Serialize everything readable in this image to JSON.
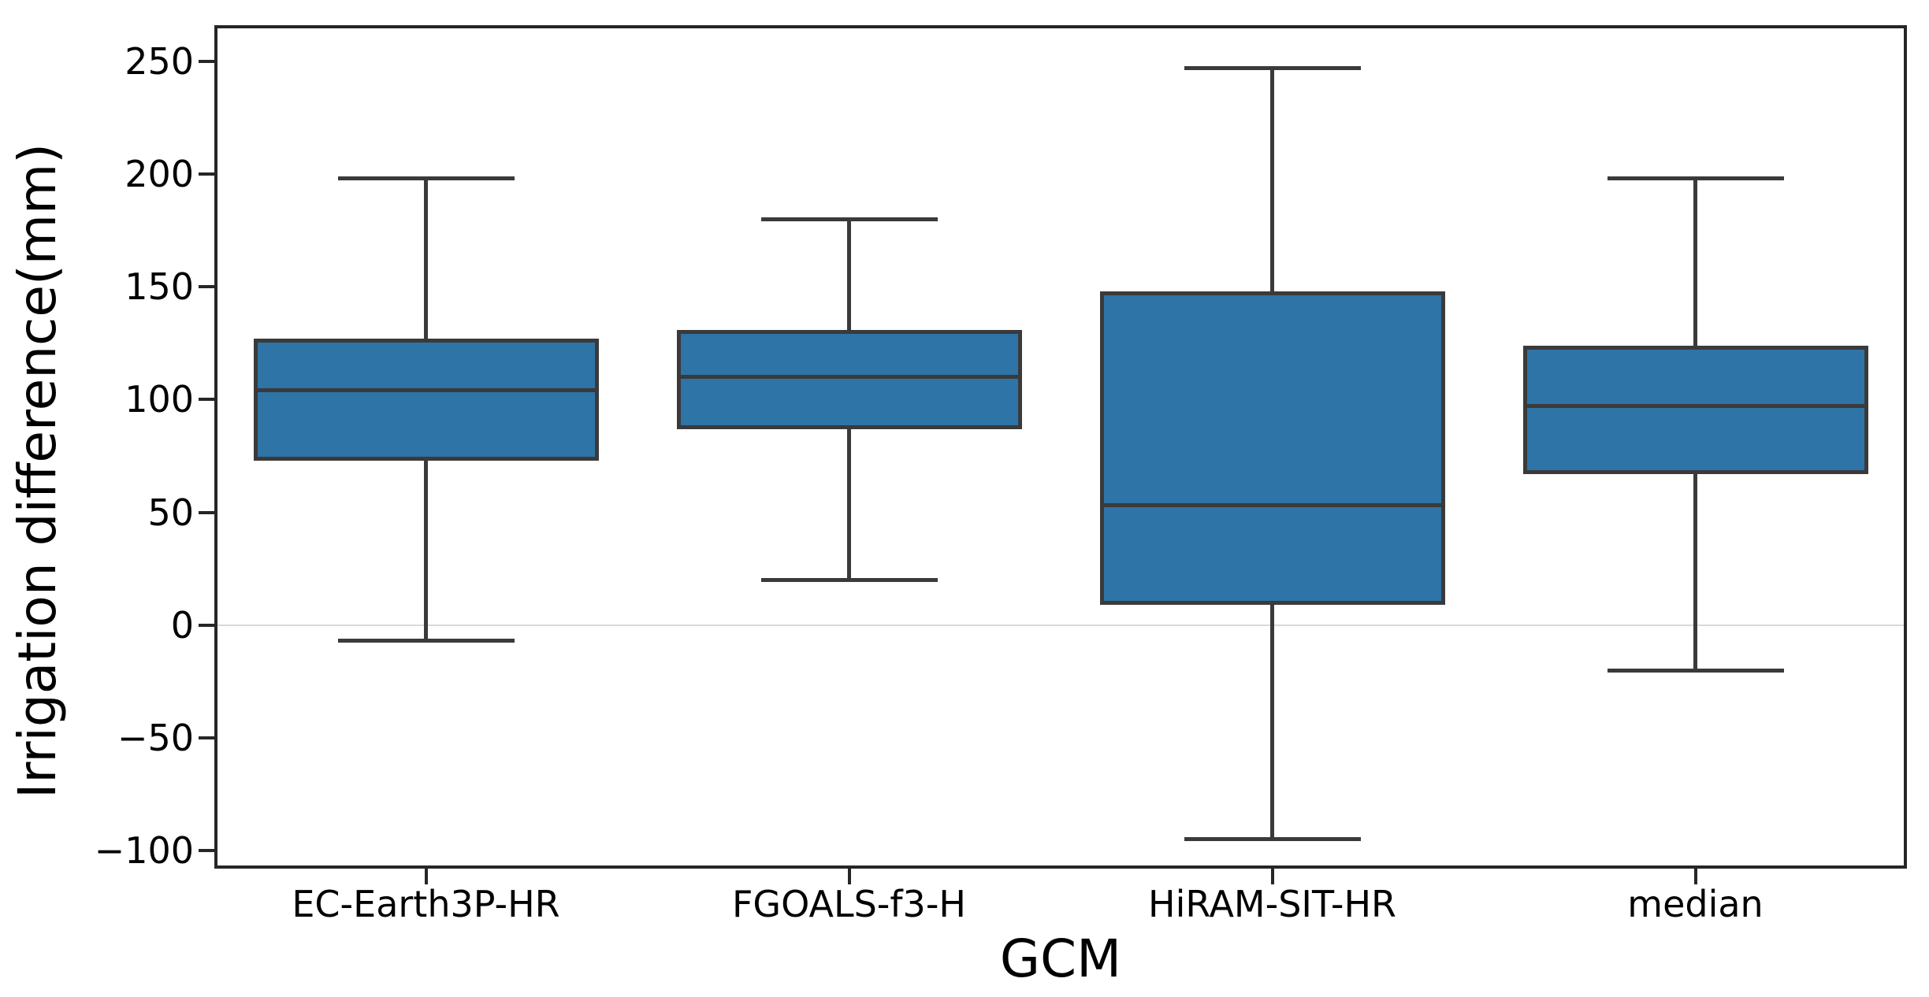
{
  "figure": {
    "background": "#ffffff"
  },
  "chart_data": {
    "type": "box",
    "title": "",
    "xlabel": "GCM",
    "ylabel": "Irrigation difference(mm)",
    "categories": [
      "EC-Earth3P-HR",
      "FGOALS-f3-H",
      "HiRAM-SIT-HR",
      "median"
    ],
    "ylim": [
      -108,
      266
    ],
    "yticks": [
      {
        "value": 250,
        "label": "250"
      },
      {
        "value": 200,
        "label": "200"
      },
      {
        "value": 150,
        "label": "150"
      },
      {
        "value": 100,
        "label": "100"
      },
      {
        "value": 50,
        "label": "50"
      },
      {
        "value": 0,
        "label": "0"
      },
      {
        "value": -50,
        "label": "−50"
      },
      {
        "value": -100,
        "label": "−100"
      }
    ],
    "grid": "horizontal-zero-reference-line-only",
    "legend_position": "none",
    "zero_line": {
      "value": 0
    },
    "boxes": [
      {
        "category": "EC-Earth3P-HR",
        "whisker_low": -7,
        "q1": 73,
        "median": 104,
        "q3": 127,
        "whisker_high": 198
      },
      {
        "category": "FGOALS-f3-H",
        "whisker_low": 20,
        "q1": 87,
        "median": 110,
        "q3": 131,
        "whisker_high": 180
      },
      {
        "category": "HiRAM-SIT-HR",
        "whisker_low": -95,
        "q1": 9,
        "median": 53,
        "q3": 148,
        "whisker_high": 247
      },
      {
        "category": "median",
        "whisker_low": -20,
        "q1": 67,
        "median": 97,
        "q3": 124,
        "whisker_high": 198
      }
    ],
    "colors": {
      "box_fill": "#2e74a6",
      "box_edge": "#3a3a3a",
      "whisker": "#3a3a3a",
      "median_line": "#3a3a3a",
      "axis_spine": "#262626",
      "zero_line": "#d9d9d9",
      "text": "#000000"
    }
  }
}
